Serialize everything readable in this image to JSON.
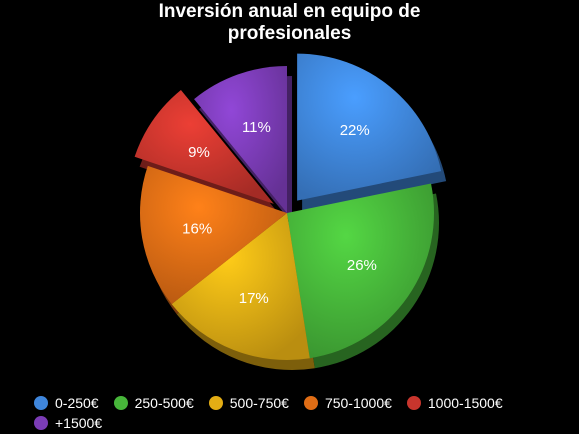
{
  "chart_data": {
    "type": "pie",
    "title": "Inversión anual en equipo de profesionales",
    "title_lines": [
      "Inversión anual en equipo de",
      "profesionales"
    ],
    "categories": [
      "0-250€",
      "250-500€",
      "500-750€",
      "750-1000€",
      "1000-1500€",
      "+1500€"
    ],
    "values": [
      22,
      26,
      17,
      16,
      9,
      11
    ],
    "labels": [
      "22%",
      "26%",
      "17%",
      "16%",
      "9%",
      "11%"
    ],
    "colors": [
      "#3f86dc",
      "#47b63a",
      "#e3ad14",
      "#e06d15",
      "#c8352d",
      "#7b3cb6"
    ],
    "exploded": [
      "0-250€",
      "1000-1500€"
    ],
    "legend_position": "bottom-left",
    "style": "3d"
  }
}
